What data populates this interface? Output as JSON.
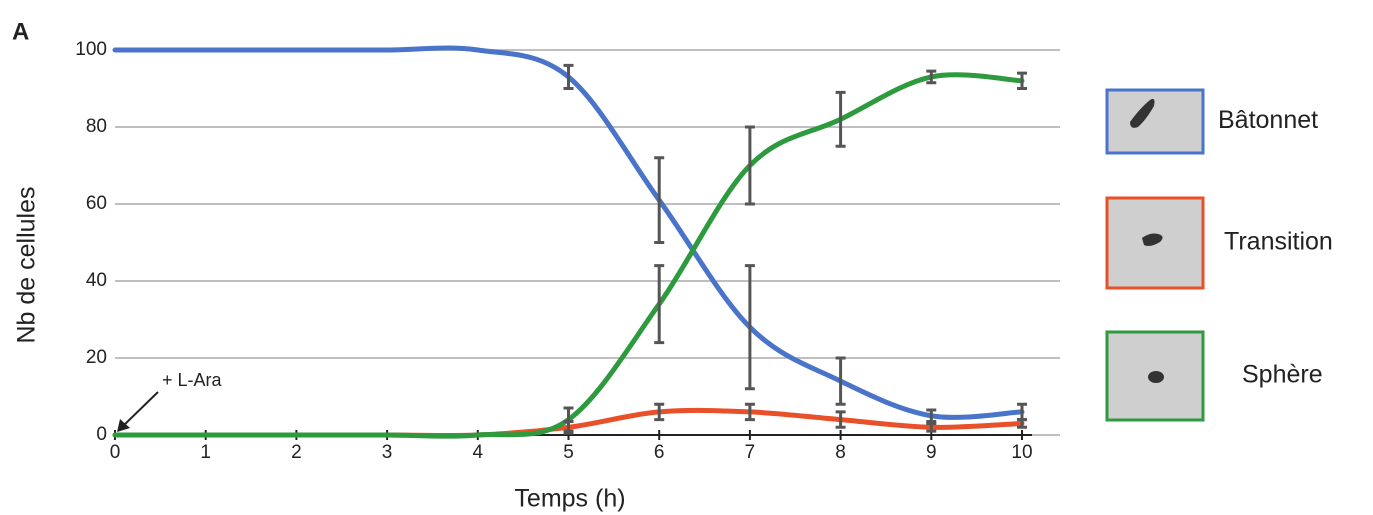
{
  "chart_data": {
    "type": "line",
    "panel_label": "A",
    "x_label": "Temps (h)",
    "y_label": "Nb de cellules",
    "annotation": "+ L-Ara",
    "x": [
      0,
      1,
      2,
      3,
      4,
      5,
      6,
      7,
      8,
      9,
      10
    ],
    "series": [
      {
        "name": "Bâtonnet",
        "color": "#4a74c9",
        "values": [
          100,
          100,
          100,
          100,
          100,
          93,
          61,
          28,
          14,
          5,
          6
        ],
        "errors": [
          null,
          null,
          null,
          null,
          null,
          3,
          11,
          16,
          6,
          1.5,
          2
        ]
      },
      {
        "name": "Transition",
        "color": "#e8502a",
        "values": [
          0,
          0,
          0,
          0,
          0,
          2,
          6,
          6,
          4,
          2,
          3
        ],
        "errors": [
          null,
          null,
          null,
          null,
          null,
          1.5,
          2,
          2,
          2,
          1,
          1
        ]
      },
      {
        "name": "Sphère",
        "color": "#2e9a3e",
        "values": [
          0,
          0,
          0,
          0,
          0,
          4,
          34,
          70,
          82,
          93,
          92
        ],
        "errors": [
          null,
          null,
          null,
          null,
          null,
          3,
          10,
          10,
          7,
          1.5,
          2
        ]
      }
    ],
    "xlim": [
      0,
      10
    ],
    "xticks": [
      0,
      1,
      2,
      3,
      4,
      5,
      6,
      7,
      8,
      9,
      10
    ],
    "ylim": [
      0,
      100
    ],
    "yticks": [
      0,
      20,
      40,
      60,
      80,
      100
    ],
    "grid": true
  }
}
